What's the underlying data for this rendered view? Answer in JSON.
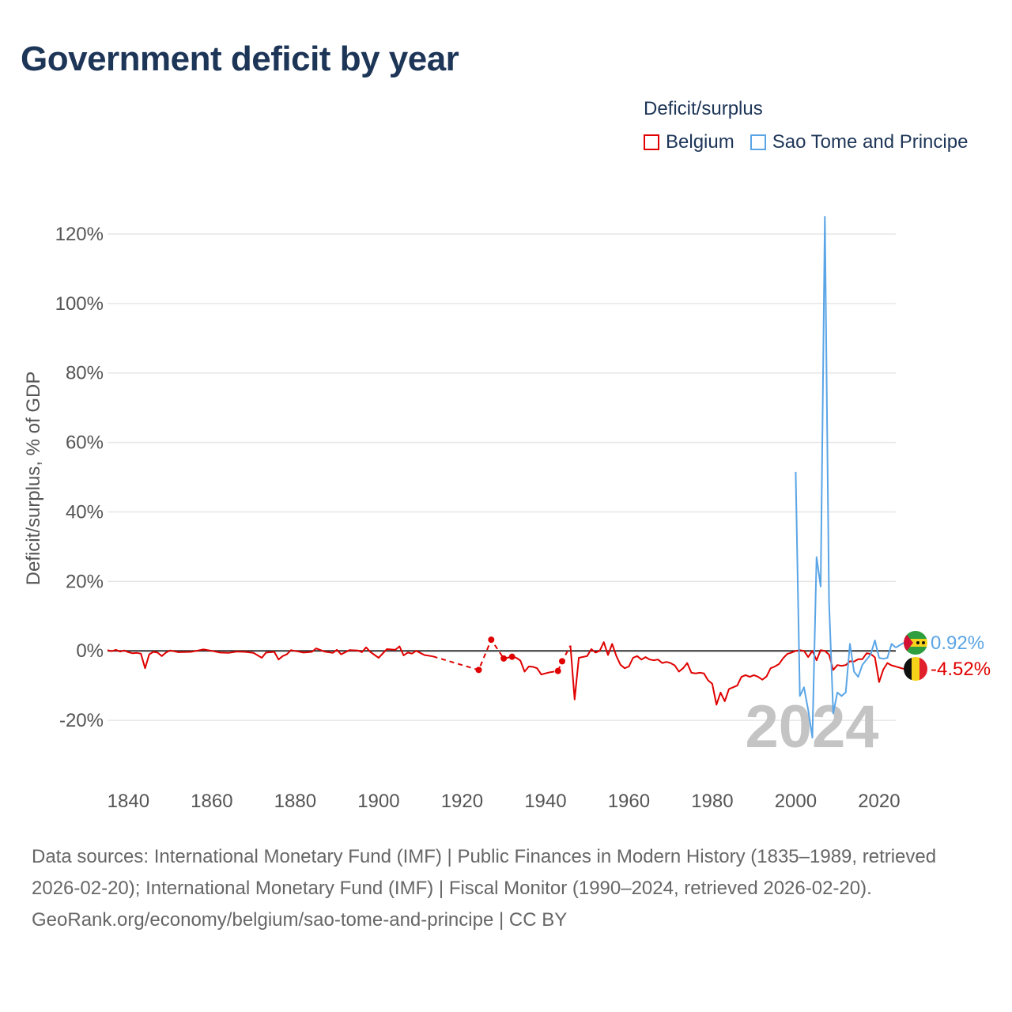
{
  "title": "Government deficit by year",
  "legend": {
    "title": "Deficit/surplus",
    "items": [
      {
        "label": "Belgium",
        "color": "#e00000"
      },
      {
        "label": "Sao Tome and Principe",
        "color": "#5aa5e6"
      }
    ]
  },
  "watermark_year": "2024",
  "footer": {
    "sources": "Data sources: International Monetary Fund (IMF) | Public Finances in Modern History (1835–1989, retrieved 2026-02-20); International Monetary Fund (IMF) | Fiscal Monitor (1990–2024, retrieved 2026-02-20).",
    "credit": "GeoRank.org/economy/belgium/sao-tome-and-principe | CC BY"
  },
  "chart_data": {
    "type": "line",
    "title": "Government deficit by year",
    "xlabel": "",
    "ylabel": "Deficit/surplus, % of GDP",
    "xlim": [
      1835,
      2024
    ],
    "ylim": [
      -25,
      125
    ],
    "x_ticks": [
      1840,
      1860,
      1880,
      1900,
      1920,
      1940,
      1960,
      1980,
      2000,
      2020
    ],
    "y_ticks": [
      -20,
      0,
      20,
      40,
      60,
      80,
      100,
      120
    ],
    "y_tick_labels": [
      "-20%",
      "0%",
      "20%",
      "40%",
      "60%",
      "80%",
      "100%",
      "120%"
    ],
    "grid": true,
    "legend_position": "top-right",
    "end_labels": [
      {
        "series": "Sao Tome and Principe",
        "text": "0.92%",
        "value": 0.92
      },
      {
        "series": "Belgium",
        "text": "-4.52%",
        "value": -4.52
      }
    ],
    "series": [
      {
        "name": "Belgium",
        "color": "#e00000",
        "segments": [
          {
            "style": "solid",
            "points": [
              [
                1835,
                0.2
              ],
              [
                1836,
                -0.1
              ],
              [
                1837,
                0.3
              ],
              [
                1838,
                -0.2
              ],
              [
                1839,
                0.1
              ],
              [
                1840,
                -0.4
              ],
              [
                1841,
                -0.7
              ],
              [
                1842,
                -0.6
              ],
              [
                1843,
                -0.8
              ],
              [
                1844,
                -5
              ],
              [
                1845,
                -1
              ],
              [
                1846,
                -0.3
              ],
              [
                1847,
                -0.5
              ],
              [
                1848,
                -1.5
              ],
              [
                1849,
                -0.5
              ],
              [
                1850,
                0.1
              ],
              [
                1852,
                -0.4
              ],
              [
                1855,
                -0.3
              ],
              [
                1858,
                0.4
              ],
              [
                1860,
                0.0
              ],
              [
                1862,
                -0.5
              ],
              [
                1864,
                -0.6
              ],
              [
                1866,
                -0.2
              ],
              [
                1868,
                -0.3
              ],
              [
                1870,
                -0.6
              ],
              [
                1872,
                -2
              ],
              [
                1873,
                -0.5
              ],
              [
                1875,
                -0.3
              ],
              [
                1876,
                -2.5
              ],
              [
                1877,
                -1.5
              ],
              [
                1878,
                -1
              ],
              [
                1879,
                0.2
              ],
              [
                1882,
                -0.5
              ],
              [
                1884,
                -0.3
              ],
              [
                1885,
                0.7
              ],
              [
                1887,
                -0.2
              ],
              [
                1889,
                -0.6
              ],
              [
                1890,
                0.3
              ],
              [
                1891,
                -1
              ],
              [
                1893,
                0.2
              ],
              [
                1895,
                0.1
              ],
              [
                1896,
                -0.4
              ],
              [
                1897,
                1
              ],
              [
                1898,
                -0.3
              ],
              [
                1900,
                -2
              ],
              [
                1902,
                0.5
              ],
              [
                1904,
                0.3
              ],
              [
                1905,
                1.3
              ],
              [
                1906,
                -1.3
              ],
              [
                1907,
                -0.5
              ],
              [
                1908,
                -0.8
              ],
              [
                1909,
                0
              ],
              [
                1910,
                -0.6
              ],
              [
                1911,
                -1.2
              ],
              [
                1913,
                -1.6
              ]
            ]
          },
          {
            "style": "dashed",
            "points": [
              [
                1913,
                -1.6
              ],
              [
                1924,
                -5.5
              ],
              [
                1927,
                3.2
              ],
              [
                1930,
                -2.2
              ],
              [
                1932,
                -1.7
              ],
              [
                1933,
                -2
              ]
            ]
          },
          {
            "style": "solid",
            "points": [
              [
                1933,
                -2
              ],
              [
                1934,
                -2.8
              ],
              [
                1935,
                -6
              ],
              [
                1936,
                -4.5
              ],
              [
                1937,
                -4.6
              ],
              [
                1938,
                -5
              ],
              [
                1939,
                -6.8
              ],
              [
                1940,
                -6.5
              ],
              [
                1941,
                -6.2
              ]
            ]
          },
          {
            "style": "dashed",
            "points": [
              [
                1941,
                -6.2
              ],
              [
                1943,
                -5.8
              ],
              [
                1944,
                -3
              ],
              [
                1946,
                1.5
              ]
            ]
          },
          {
            "style": "solid",
            "points": [
              [
                1946,
                1.5
              ],
              [
                1947,
                -14
              ],
              [
                1948,
                -2
              ],
              [
                1950,
                -1.5
              ],
              [
                1951,
                0.5
              ],
              [
                1952,
                -0.5
              ],
              [
                1953,
                0
              ],
              [
                1954,
                2.5
              ],
              [
                1955,
                -1.2
              ],
              [
                1956,
                2
              ],
              [
                1957,
                -1.5
              ],
              [
                1958,
                -4
              ],
              [
                1959,
                -5
              ],
              [
                1960,
                -4.5
              ],
              [
                1961,
                -2
              ],
              [
                1962,
                -1.5
              ],
              [
                1963,
                -2.5
              ],
              [
                1964,
                -1.8
              ],
              [
                1965,
                -2.5
              ],
              [
                1966,
                -2.7
              ],
              [
                1967,
                -2.5
              ],
              [
                1968,
                -3.5
              ],
              [
                1969,
                -3.2
              ],
              [
                1970,
                -3.5
              ],
              [
                1971,
                -4.2
              ],
              [
                1972,
                -6
              ],
              [
                1973,
                -5
              ],
              [
                1974,
                -3.5
              ],
              [
                1975,
                -6.3
              ],
              [
                1976,
                -6.5
              ],
              [
                1977,
                -6.3
              ],
              [
                1978,
                -6.5
              ],
              [
                1979,
                -8.5
              ],
              [
                1980,
                -9.5
              ],
              [
                1981,
                -15.5
              ],
              [
                1982,
                -12
              ],
              [
                1983,
                -14.5
              ],
              [
                1984,
                -11
              ],
              [
                1985,
                -10.5
              ],
              [
                1986,
                -10
              ],
              [
                1987,
                -7.5
              ],
              [
                1988,
                -7
              ],
              [
                1989,
                -7.5
              ],
              [
                1990,
                -7
              ],
              [
                1991,
                -7.5
              ],
              [
                1992,
                -8.3
              ],
              [
                1993,
                -7.4
              ],
              [
                1994,
                -5
              ],
              [
                1995,
                -4.5
              ],
              [
                1996,
                -3.8
              ],
              [
                1997,
                -2.1
              ],
              [
                1998,
                -0.9
              ],
              [
                1999,
                -0.5
              ],
              [
                2000,
                0
              ],
              [
                2001,
                0.2
              ],
              [
                2002,
                0
              ],
              [
                2003,
                -1.8
              ],
              [
                2004,
                0
              ],
              [
                2005,
                -2.7
              ],
              [
                2006,
                0.2
              ],
              [
                2007,
                0
              ],
              [
                2008,
                -1.1
              ],
              [
                2009,
                -5.5
              ],
              [
                2010,
                -4.1
              ],
              [
                2011,
                -4.3
              ],
              [
                2012,
                -4.1
              ],
              [
                2013,
                -3
              ],
              [
                2014,
                -3.1
              ],
              [
                2015,
                -2.4
              ],
              [
                2016,
                -2.4
              ],
              [
                2017,
                -0.7
              ],
              [
                2018,
                -0.9
              ],
              [
                2019,
                -1.9
              ],
              [
                2020,
                -9
              ],
              [
                2021,
                -5.4
              ],
              [
                2022,
                -3.5
              ],
              [
                2023,
                -4.2
              ],
              [
                2024,
                -4.52
              ]
            ]
          }
        ]
      },
      {
        "name": "Sao Tome and Principe",
        "color": "#5aa5e6",
        "segments": [
          {
            "style": "solid",
            "points": [
              [
                2000,
                51.5
              ],
              [
                2001,
                -13
              ],
              [
                2002,
                -10.5
              ],
              [
                2003,
                -17
              ],
              [
                2004,
                -25
              ],
              [
                2005,
                27
              ],
              [
                2006,
                18.5
              ],
              [
                2007,
                125
              ],
              [
                2008,
                14
              ],
              [
                2009,
                -18
              ],
              [
                2010,
                -12
              ],
              [
                2011,
                -13
              ],
              [
                2012,
                -12
              ],
              [
                2013,
                2
              ],
              [
                2014,
                -6
              ],
              [
                2015,
                -7.5
              ],
              [
                2016,
                -4
              ],
              [
                2017,
                -2.5
              ],
              [
                2018,
                -1
              ],
              [
                2019,
                3
              ],
              [
                2020,
                -2
              ],
              [
                2021,
                -2.3
              ],
              [
                2022,
                -2
              ],
              [
                2023,
                2
              ],
              [
                2024,
                0.92
              ]
            ]
          }
        ]
      }
    ]
  }
}
